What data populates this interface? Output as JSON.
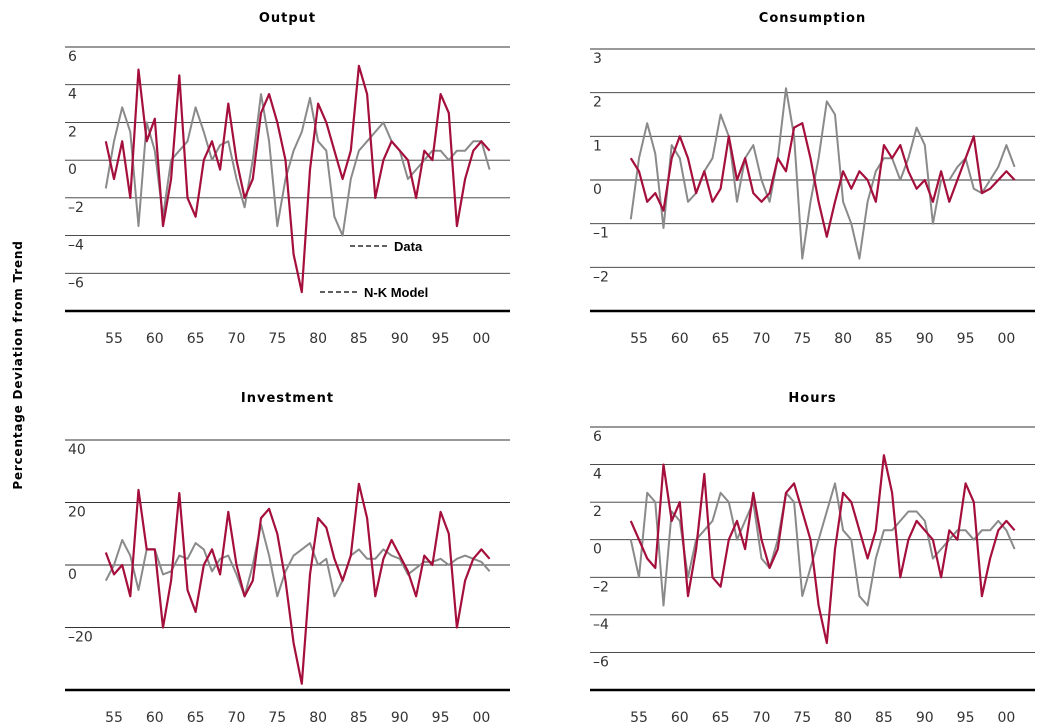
{
  "y_label": "Percentage Deviation from Trend",
  "chart_data": [
    {
      "type": "line",
      "title": "Output",
      "x": [
        1954,
        1955,
        1956,
        1957,
        1958,
        1959,
        1960,
        1961,
        1962,
        1963,
        1964,
        1965,
        1966,
        1967,
        1968,
        1969,
        1970,
        1971,
        1972,
        1973,
        1974,
        1975,
        1976,
        1977,
        1978,
        1979,
        1980,
        1981,
        1982,
        1983,
        1984,
        1985,
        1986,
        1987,
        1988,
        1989,
        1990,
        1991,
        1992,
        1993,
        1994,
        1995,
        1996,
        1997,
        1998,
        1999,
        2000,
        2001
      ],
      "xlim": [
        1949,
        2003.5
      ],
      "xticks": [
        {
          "value": 1955,
          "label": "55"
        },
        {
          "value": 1960,
          "label": "60"
        },
        {
          "value": 1965,
          "label": "65"
        },
        {
          "value": 1970,
          "label": "70"
        },
        {
          "value": 1975,
          "label": "75"
        },
        {
          "value": 1980,
          "label": "80"
        },
        {
          "value": 1985,
          "label": "85"
        },
        {
          "value": 1990,
          "label": "90"
        },
        {
          "value": 1995,
          "label": "95"
        },
        {
          "value": 2000,
          "label": "00"
        }
      ],
      "ylim": [
        -8,
        6
      ],
      "yticks": [
        6,
        4,
        2,
        0,
        {
          "value": -2,
          "label": "–2"
        },
        {
          "value": -4,
          "label": "–4"
        },
        {
          "value": -6,
          "label": "–6"
        }
      ],
      "series": [
        {
          "name": "Data",
          "color": "#8a8a8a",
          "values": [
            -1.5,
            1,
            2.8,
            1.5,
            -3.5,
            2,
            0.5,
            -3,
            0,
            0.5,
            1,
            2.8,
            1.5,
            0,
            0.8,
            1,
            -1,
            -2.5,
            0,
            3.5,
            1,
            -3.5,
            -1,
            0.5,
            1.5,
            3.3,
            1,
            0.5,
            -3,
            -4,
            -1,
            0.5,
            1,
            1.5,
            2,
            1,
            0.5,
            -1,
            -0.5,
            0,
            0.5,
            0.5,
            0,
            0.5,
            0.5,
            1,
            1,
            -0.5
          ]
        },
        {
          "name": "N-K Model",
          "color": "#a50f3c",
          "values": [
            1,
            -1,
            1,
            -2,
            4.8,
            1,
            2.2,
            -3.5,
            -1,
            4.5,
            -2,
            -3,
            0,
            1,
            -0.5,
            3,
            0,
            -2,
            -1,
            2.5,
            3.5,
            2,
            0,
            -5,
            -7,
            -0.5,
            3,
            2,
            0.5,
            -1,
            0.5,
            5,
            3.5,
            -2,
            0,
            1,
            0.5,
            0,
            -2,
            0.5,
            0,
            3.5,
            2.5,
            -3.5,
            -1,
            0.5,
            1,
            0.5
          ]
        }
      ]
    },
    {
      "type": "line",
      "title": "Consumption",
      "x": [
        1954,
        1955,
        1956,
        1957,
        1958,
        1959,
        1960,
        1961,
        1962,
        1963,
        1964,
        1965,
        1966,
        1967,
        1968,
        1969,
        1970,
        1971,
        1972,
        1973,
        1974,
        1975,
        1976,
        1977,
        1978,
        1979,
        1980,
        1981,
        1982,
        1983,
        1984,
        1985,
        1986,
        1987,
        1988,
        1989,
        1990,
        1991,
        1992,
        1993,
        1994,
        1995,
        1996,
        1997,
        1998,
        1999,
        2000,
        2001
      ],
      "xlim": [
        1949,
        2003.5
      ],
      "xticks": [
        {
          "value": 1955,
          "label": "55"
        },
        {
          "value": 1960,
          "label": "60"
        },
        {
          "value": 1965,
          "label": "65"
        },
        {
          "value": 1970,
          "label": "70"
        },
        {
          "value": 1975,
          "label": "75"
        },
        {
          "value": 1980,
          "label": "80"
        },
        {
          "value": 1985,
          "label": "85"
        },
        {
          "value": 1990,
          "label": "90"
        },
        {
          "value": 1995,
          "label": "95"
        },
        {
          "value": 2000,
          "label": "00"
        }
      ],
      "ylim": [
        -3,
        3
      ],
      "yticks": [
        3,
        2,
        1,
        0,
        {
          "value": -1,
          "label": "–1"
        },
        {
          "value": -2,
          "label": "–2"
        }
      ],
      "series": [
        {
          "color": "#8a8a8a",
          "values": [
            -0.9,
            0.5,
            1.3,
            0.6,
            -1.1,
            0.8,
            0.5,
            -0.5,
            -0.3,
            0.2,
            0.5,
            1.5,
            1,
            -0.5,
            0.5,
            0.8,
            0,
            -0.5,
            0.5,
            2.1,
            1,
            -1.8,
            -0.5,
            0.5,
            1.8,
            1.5,
            -0.5,
            -1,
            -1.8,
            -0.5,
            0.2,
            0.5,
            0.5,
            0,
            0.5,
            1.2,
            0.8,
            -1,
            0,
            0,
            0.3,
            0.5,
            -0.2,
            -0.3,
            0,
            0.3,
            0.8,
            0.3
          ]
        },
        {
          "color": "#a50f3c",
          "values": [
            0.5,
            0.2,
            -0.5,
            -0.3,
            -0.7,
            0.5,
            1,
            0.5,
            -0.3,
            0.2,
            -0.5,
            -0.2,
            1,
            0,
            0.5,
            -0.3,
            -0.5,
            -0.3,
            0.5,
            0.2,
            1.2,
            1.3,
            0.5,
            -0.5,
            -1.3,
            -0.5,
            0.2,
            -0.2,
            0.2,
            0,
            -0.5,
            0.8,
            0.5,
            0.8,
            0.2,
            -0.2,
            0,
            -0.5,
            0.2,
            -0.5,
            0,
            0.5,
            1,
            -0.3,
            -0.2,
            0,
            0.2,
            0
          ]
        }
      ]
    },
    {
      "type": "line",
      "title": "Investment",
      "x": [
        1954,
        1955,
        1956,
        1957,
        1958,
        1959,
        1960,
        1961,
        1962,
        1963,
        1964,
        1965,
        1966,
        1967,
        1968,
        1969,
        1970,
        1971,
        1972,
        1973,
        1974,
        1975,
        1976,
        1977,
        1978,
        1979,
        1980,
        1981,
        1982,
        1983,
        1984,
        1985,
        1986,
        1987,
        1988,
        1989,
        1990,
        1991,
        1992,
        1993,
        1994,
        1995,
        1996,
        1997,
        1998,
        1999,
        2000,
        2001
      ],
      "xlim": [
        1949,
        2003.5
      ],
      "xticks": [
        {
          "value": 1955,
          "label": "55"
        },
        {
          "value": 1960,
          "label": "60"
        },
        {
          "value": 1965,
          "label": "65"
        },
        {
          "value": 1970,
          "label": "70"
        },
        {
          "value": 1975,
          "label": "75"
        },
        {
          "value": 1980,
          "label": "80"
        },
        {
          "value": 1985,
          "label": "85"
        },
        {
          "value": 1990,
          "label": "90"
        },
        {
          "value": 1995,
          "label": "95"
        },
        {
          "value": 2000,
          "label": "00"
        }
      ],
      "ylim": [
        -40,
        40
      ],
      "yticks": [
        40,
        20,
        0,
        {
          "value": -20,
          "label": "–20"
        }
      ],
      "series": [
        {
          "color": "#8a8a8a",
          "values": [
            -5,
            0,
            8,
            3,
            -8,
            5,
            5,
            -3,
            -2,
            3,
            2,
            7,
            5,
            -2,
            2,
            3,
            -3,
            -10,
            0,
            13,
            3,
            -10,
            -2,
            3,
            5,
            7,
            0,
            2,
            -10,
            -5,
            3,
            5,
            2,
            2,
            5,
            3,
            2,
            -3,
            -1,
            1,
            1,
            2,
            0,
            2,
            3,
            2,
            1,
            -2
          ]
        },
        {
          "color": "#a50f3c",
          "values": [
            4,
            -3,
            0,
            -10,
            24,
            5,
            5,
            -20,
            -5,
            23,
            -8,
            -15,
            0,
            5,
            -3,
            17,
            0,
            -10,
            -5,
            15,
            18,
            10,
            -5,
            -25,
            -38,
            -3,
            15,
            12,
            2,
            -5,
            3,
            26,
            15,
            -10,
            2,
            8,
            3,
            -2,
            -10,
            3,
            0,
            17,
            10,
            -20,
            -5,
            2,
            5,
            2
          ]
        }
      ]
    },
    {
      "type": "line",
      "title": "Hours",
      "x": [
        1954,
        1955,
        1956,
        1957,
        1958,
        1959,
        1960,
        1961,
        1962,
        1963,
        1964,
        1965,
        1966,
        1967,
        1968,
        1969,
        1970,
        1971,
        1972,
        1973,
        1974,
        1975,
        1976,
        1977,
        1978,
        1979,
        1980,
        1981,
        1982,
        1983,
        1984,
        1985,
        1986,
        1987,
        1988,
        1989,
        1990,
        1991,
        1992,
        1993,
        1994,
        1995,
        1996,
        1997,
        1998,
        1999,
        2000,
        2001
      ],
      "xlim": [
        1949,
        2003.5
      ],
      "xticks": [
        {
          "value": 1955,
          "label": "55"
        },
        {
          "value": 1960,
          "label": "60"
        },
        {
          "value": 1965,
          "label": "65"
        },
        {
          "value": 1970,
          "label": "70"
        },
        {
          "value": 1975,
          "label": "75"
        },
        {
          "value": 1980,
          "label": "80"
        },
        {
          "value": 1985,
          "label": "85"
        },
        {
          "value": 1990,
          "label": "90"
        },
        {
          "value": 1995,
          "label": "95"
        },
        {
          "value": 2000,
          "label": "00"
        }
      ],
      "ylim": [
        -8,
        6
      ],
      "yticks": [
        6,
        4,
        2,
        0,
        {
          "value": -2,
          "label": "–2"
        },
        {
          "value": -4,
          "label": "–4"
        },
        {
          "value": -6,
          "label": "–6"
        }
      ],
      "series": [
        {
          "color": "#8a8a8a",
          "values": [
            0,
            -2,
            2.5,
            2,
            -3.5,
            1.5,
            1,
            -2,
            0,
            0.5,
            1,
            2.5,
            2,
            0,
            1,
            2,
            -1,
            -1.5,
            0,
            2.5,
            2,
            -3,
            -1.5,
            0,
            1.5,
            3,
            0.5,
            0,
            -3,
            -3.5,
            -1,
            0.5,
            0.5,
            1,
            1.5,
            1.5,
            1,
            -1,
            -0.5,
            0,
            0.5,
            0.5,
            0,
            0.5,
            0.5,
            1,
            0.5,
            -0.5
          ]
        },
        {
          "color": "#a50f3c",
          "values": [
            1,
            0,
            -1,
            -1.5,
            4,
            1,
            2,
            -3,
            -0.5,
            3.5,
            -2,
            -2.5,
            0,
            1,
            -0.5,
            2.5,
            0,
            -1.5,
            -0.5,
            2.5,
            3,
            1.5,
            0,
            -3.5,
            -5.5,
            -0.5,
            2.5,
            2,
            0.5,
            -1,
            0.5,
            4.5,
            2.5,
            -2,
            0,
            1,
            0.5,
            0,
            -2,
            0.5,
            0,
            3,
            2,
            -3,
            -1,
            0.5,
            1,
            0.5
          ]
        }
      ]
    }
  ]
}
